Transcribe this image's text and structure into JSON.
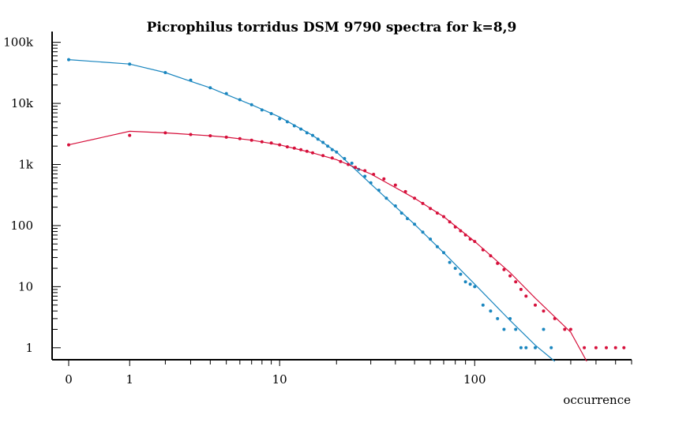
{
  "chart_data": {
    "type": "scatter",
    "title": "Picrophilus torridus DSM 9790 spectra for k=8,9",
    "xlabel": "occurrence",
    "ylabel": "",
    "x_scale": "log1p",
    "y_scale": "log",
    "xlim": [
      0,
      600
    ],
    "ylim": [
      0.6,
      150000
    ],
    "x_ticks": [
      {
        "value": 0,
        "label": "0"
      },
      {
        "value": 1,
        "label": "1"
      },
      {
        "value": 10,
        "label": "10"
      },
      {
        "value": 100,
        "label": "100"
      }
    ],
    "y_ticks": [
      {
        "value": 1,
        "label": "1"
      },
      {
        "value": 10,
        "label": "10"
      },
      {
        "value": 100,
        "label": "100"
      },
      {
        "value": 1000,
        "label": "1k"
      },
      {
        "value": 10000,
        "label": "10k"
      },
      {
        "value": 100000,
        "label": "100k"
      }
    ],
    "series": [
      {
        "color": "#1a86bf",
        "curve": [
          [
            0,
            52000
          ],
          [
            1,
            44000
          ],
          [
            2,
            32000
          ],
          [
            3,
            23000
          ],
          [
            4,
            18000
          ],
          [
            5,
            14000
          ],
          [
            7,
            9500
          ],
          [
            10,
            6000
          ],
          [
            15,
            3000
          ],
          [
            20,
            1600
          ],
          [
            30,
            480
          ],
          [
            50,
            105
          ],
          [
            70,
            36
          ],
          [
            100,
            11
          ],
          [
            150,
            2.8
          ],
          [
            200,
            1.1
          ],
          [
            250,
            0.6
          ]
        ],
        "points": [
          [
            0,
            52000
          ],
          [
            1,
            44000
          ],
          [
            2,
            32000
          ],
          [
            3,
            24000
          ],
          [
            4,
            18000
          ],
          [
            5,
            14500
          ],
          [
            6,
            11500
          ],
          [
            7,
            9500
          ],
          [
            8,
            7800
          ],
          [
            9,
            6800
          ],
          [
            10,
            5600
          ],
          [
            11,
            5000
          ],
          [
            12,
            4300
          ],
          [
            13,
            3800
          ],
          [
            14,
            3300
          ],
          [
            15,
            3000
          ],
          [
            16,
            2600
          ],
          [
            17,
            2300
          ],
          [
            18,
            2000
          ],
          [
            19,
            1750
          ],
          [
            20,
            1600
          ],
          [
            22,
            1250
          ],
          [
            24,
            1050
          ],
          [
            26,
            830
          ],
          [
            28,
            640
          ],
          [
            30,
            500
          ],
          [
            33,
            380
          ],
          [
            36,
            280
          ],
          [
            40,
            210
          ],
          [
            43,
            160
          ],
          [
            46,
            130
          ],
          [
            50,
            105
          ],
          [
            55,
            78
          ],
          [
            60,
            60
          ],
          [
            65,
            45
          ],
          [
            70,
            36
          ],
          [
            75,
            25
          ],
          [
            80,
            20
          ],
          [
            85,
            16
          ],
          [
            90,
            12
          ],
          [
            95,
            11
          ],
          [
            100,
            10
          ],
          [
            110,
            5
          ],
          [
            120,
            4
          ],
          [
            130,
            3
          ],
          [
            140,
            2
          ],
          [
            150,
            3
          ],
          [
            160,
            2
          ],
          [
            170,
            1
          ],
          [
            180,
            1
          ],
          [
            200,
            1
          ],
          [
            220,
            2
          ],
          [
            240,
            1
          ]
        ]
      },
      {
        "color": "#d6103b",
        "curve": [
          [
            0,
            2100
          ],
          [
            1,
            3500
          ],
          [
            2,
            3300
          ],
          [
            3,
            3100
          ],
          [
            4,
            2950
          ],
          [
            5,
            2800
          ],
          [
            7,
            2500
          ],
          [
            10,
            2100
          ],
          [
            15,
            1550
          ],
          [
            20,
            1200
          ],
          [
            30,
            700
          ],
          [
            50,
            280
          ],
          [
            70,
            140
          ],
          [
            100,
            55
          ],
          [
            150,
            17
          ],
          [
            200,
            6.5
          ],
          [
            300,
            1.8
          ],
          [
            360,
            0.6
          ]
        ],
        "points": [
          [
            0,
            2100
          ],
          [
            1,
            3000
          ],
          [
            2,
            3300
          ],
          [
            3,
            3100
          ],
          [
            4,
            2950
          ],
          [
            5,
            2800
          ],
          [
            6,
            2650
          ],
          [
            7,
            2500
          ],
          [
            8,
            2350
          ],
          [
            9,
            2250
          ],
          [
            10,
            2100
          ],
          [
            11,
            1950
          ],
          [
            12,
            1850
          ],
          [
            13,
            1750
          ],
          [
            14,
            1650
          ],
          [
            15,
            1550
          ],
          [
            17,
            1400
          ],
          [
            19,
            1280
          ],
          [
            21,
            1120
          ],
          [
            23,
            1000
          ],
          [
            25,
            900
          ],
          [
            28,
            790
          ],
          [
            31,
            690
          ],
          [
            35,
            580
          ],
          [
            40,
            460
          ],
          [
            45,
            360
          ],
          [
            50,
            280
          ],
          [
            55,
            230
          ],
          [
            60,
            190
          ],
          [
            65,
            160
          ],
          [
            70,
            140
          ],
          [
            75,
            115
          ],
          [
            80,
            95
          ],
          [
            85,
            82
          ],
          [
            90,
            70
          ],
          [
            95,
            60
          ],
          [
            100,
            55
          ],
          [
            110,
            40
          ],
          [
            120,
            32
          ],
          [
            130,
            24
          ],
          [
            140,
            19
          ],
          [
            150,
            15
          ],
          [
            160,
            12
          ],
          [
            170,
            9
          ],
          [
            180,
            7
          ],
          [
            200,
            5
          ],
          [
            220,
            4
          ],
          [
            250,
            3
          ],
          [
            280,
            2
          ],
          [
            300,
            2
          ],
          [
            350,
            1
          ],
          [
            400,
            1
          ],
          [
            450,
            1
          ],
          [
            500,
            1
          ],
          [
            550,
            1
          ]
        ]
      }
    ]
  }
}
